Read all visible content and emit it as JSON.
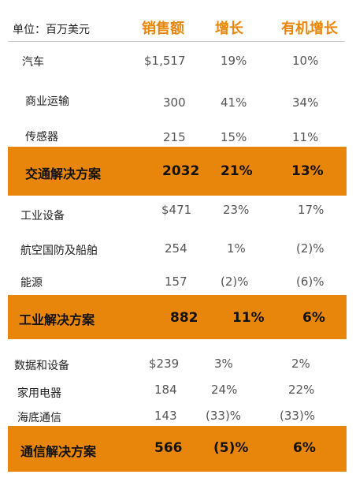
{
  "header": {
    "unit": "单位：百万美元",
    "col_sales": "销售额",
    "col_growth": "增长",
    "col_organic": "有机增长"
  },
  "transport": {
    "rows": [
      {
        "label": "汽车",
        "sales": "$1,517",
        "growth": "19%",
        "organic": "10%"
      },
      {
        "label": "商业运输",
        "sales": "300",
        "growth": "41%",
        "organic": "34%"
      },
      {
        "label": "传感器",
        "sales": "215",
        "growth": "15%",
        "organic": "11%"
      }
    ],
    "total": {
      "label": "交通解决方案",
      "sales": "2032",
      "growth": "21%",
      "organic": "13%"
    }
  },
  "industrial": {
    "rows": [
      {
        "label": "工业设备",
        "sales": "$471",
        "growth": "23%",
        "organic": "17%"
      },
      {
        "label": "航空国防及船舶",
        "sales": "254",
        "growth": "1%",
        "organic": "(2)%"
      },
      {
        "label": "能源",
        "sales": "157",
        "growth": "(2)%",
        "organic": "(6)%"
      }
    ],
    "total": {
      "label": "工业解决方案",
      "sales": "882",
      "growth": "11%",
      "organic": "6%"
    }
  },
  "communications": {
    "rows": [
      {
        "label": "数据和设备",
        "sales": "$239",
        "growth": "3%",
        "organic": "2%"
      },
      {
        "label": "家用电器",
        "sales": "184",
        "growth": "24%",
        "organic": "22%"
      },
      {
        "label": "海底通信",
        "sales": "143",
        "growth": "(33)%",
        "organic": "(33)%"
      }
    ],
    "total": {
      "label": "通信解决方案",
      "sales": "566",
      "growth": "(5)%",
      "organic": "6%"
    }
  },
  "colors": {
    "accent": "#E8860C"
  }
}
